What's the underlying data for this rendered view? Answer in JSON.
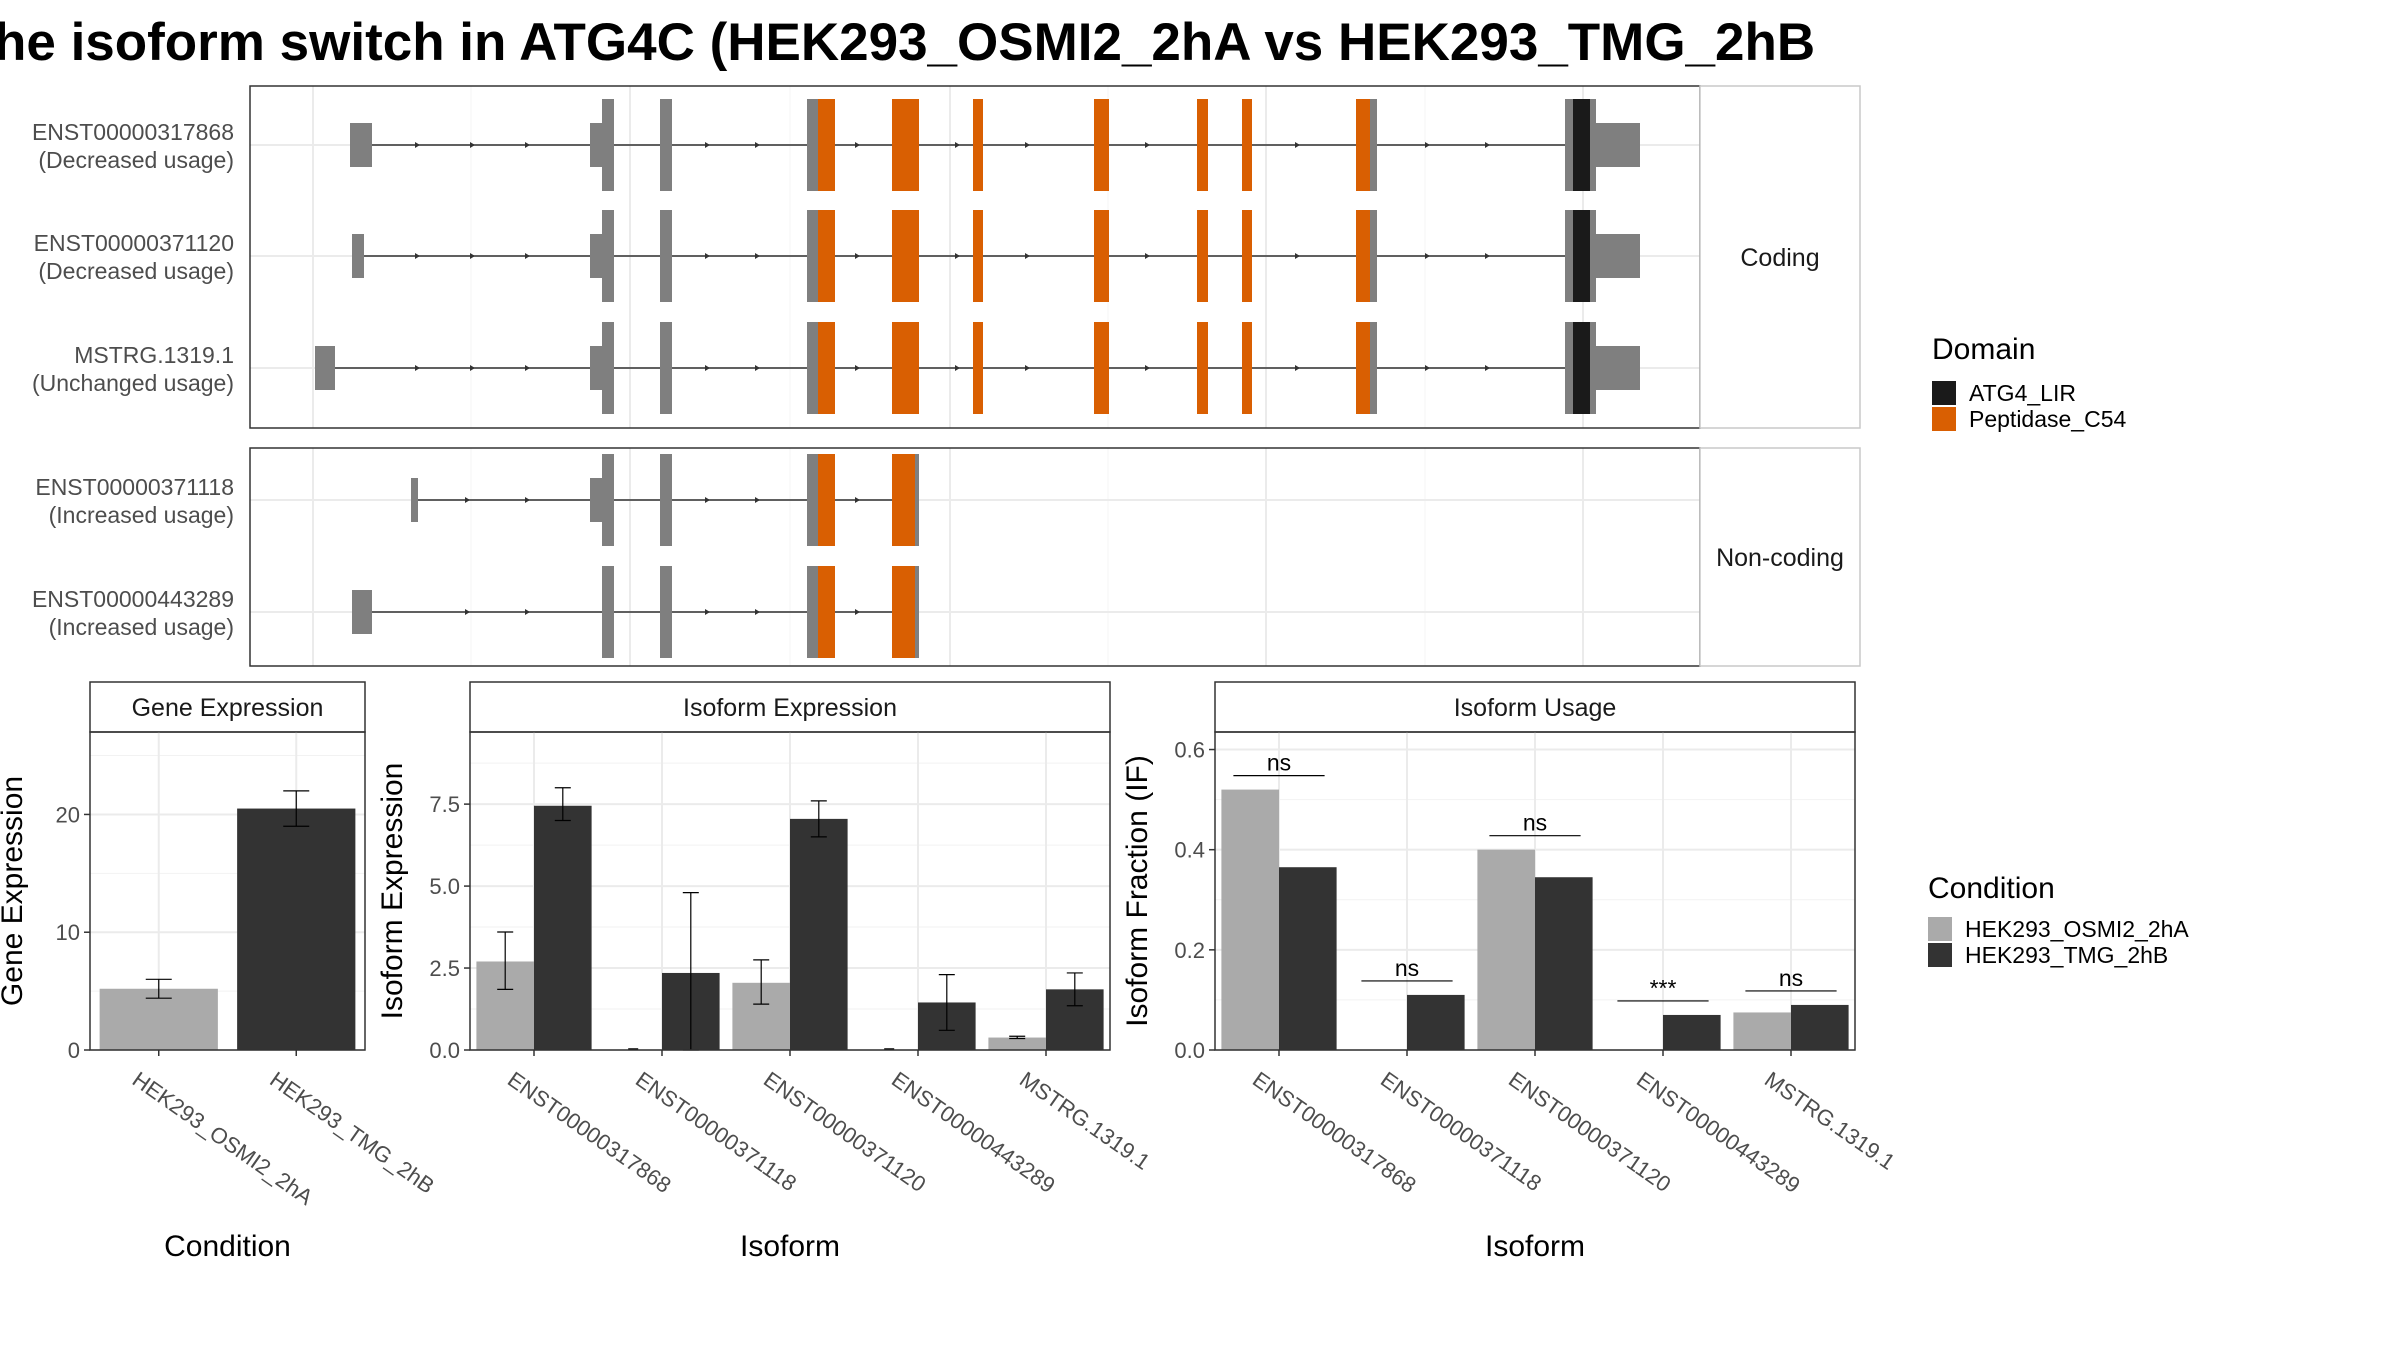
{
  "figure": {
    "title": "he isoform switch in ATG4C (HEK293_OSMI2_2hA vs HEK293_TMG_2hB"
  },
  "domain_legend": {
    "title": "Domain",
    "items": [
      {
        "label": "ATG4_LIR",
        "color": "#1a1a1a"
      },
      {
        "label": "Peptidase_C54",
        "color": "#d95f02"
      }
    ]
  },
  "condition_legend": {
    "title": "Condition",
    "items": [
      {
        "label": "HEK293_OSMI2_2hA",
        "color": "#aaaaaa"
      },
      {
        "label": "HEK293_TMG_2hB",
        "color": "#333333"
      }
    ]
  },
  "transcripts": {
    "facets": [
      {
        "label": "Coding",
        "rows": [
          {
            "id": "ENST00000317868",
            "usage": "(Decreased usage)",
            "tss": "a"
          },
          {
            "id": "ENST00000371120",
            "usage": "(Decreased usage)",
            "tss": "b"
          },
          {
            "id": "MSTRG.1319.1",
            "usage": "(Unchanged usage)",
            "tss": "c"
          }
        ]
      },
      {
        "label": "Non-coding",
        "rows": [
          {
            "id": "ENST00000371118",
            "usage": "(Increased usage)",
            "tss": "d"
          },
          {
            "id": "ENST00000443289",
            "usage": "(Increased usage)",
            "tss": "e"
          }
        ]
      }
    ]
  },
  "chart_data": [
    {
      "type": "bar",
      "panel": "Gene Expression",
      "xlabel": "Condition",
      "ylabel": "Gene Expression",
      "ylim": [
        0,
        27
      ],
      "yticks": [
        0,
        10,
        20
      ],
      "categories": [
        "HEK293_OSMI2_2hA",
        "HEK293_TMG_2hB"
      ],
      "values": [
        5.2,
        20.5
      ],
      "errors": [
        [
          4.4,
          6.0
        ],
        [
          19.0,
          22.0
        ]
      ]
    },
    {
      "type": "bar",
      "panel": "Isoform Expression",
      "xlabel": "Isoform",
      "ylabel": "Isoform Expression",
      "ylim": [
        0,
        9.7
      ],
      "yticks": [
        "0.0",
        "2.5",
        "5.0",
        "7.5"
      ],
      "categories": [
        "ENST00000317868",
        "ENST00000371118",
        "ENST00000371120",
        "ENST00000443289",
        "MSTRG.1319.1"
      ],
      "series": [
        {
          "name": "HEK293_OSMI2_2hA",
          "values": [
            2.7,
            0.0,
            2.05,
            0.0,
            0.38
          ],
          "errors": [
            [
              1.85,
              3.6
            ],
            [
              0.0,
              0.0
            ],
            [
              1.4,
              2.75
            ],
            [
              0.0,
              0.0
            ],
            [
              0.35,
              0.42
            ]
          ]
        },
        {
          "name": "HEK293_TMG_2hB",
          "values": [
            7.45,
            2.35,
            7.05,
            1.45,
            1.85
          ],
          "errors": [
            [
              7.0,
              8.0
            ],
            [
              0.0,
              4.8
            ],
            [
              6.5,
              7.6
            ],
            [
              0.6,
              2.3
            ],
            [
              1.35,
              2.35
            ]
          ]
        }
      ]
    },
    {
      "type": "bar",
      "panel": "Isoform Usage",
      "xlabel": "Isoform",
      "ylabel": "Isoform Fraction (IF)",
      "ylim": [
        0,
        0.635
      ],
      "yticks": [
        "0.0",
        "0.2",
        "0.4",
        "0.6"
      ],
      "categories": [
        "ENST00000317868",
        "ENST00000371118",
        "ENST00000371120",
        "ENST00000443289",
        "MSTRG.1319.1"
      ],
      "series": [
        {
          "name": "HEK293_OSMI2_2hA",
          "values": [
            0.52,
            0.0,
            0.4,
            0.0,
            0.075
          ]
        },
        {
          "name": "HEK293_TMG_2hB",
          "values": [
            0.365,
            0.11,
            0.345,
            0.07,
            0.09
          ]
        }
      ],
      "significance": [
        "ns",
        "ns",
        "ns",
        "***",
        "ns"
      ]
    }
  ]
}
